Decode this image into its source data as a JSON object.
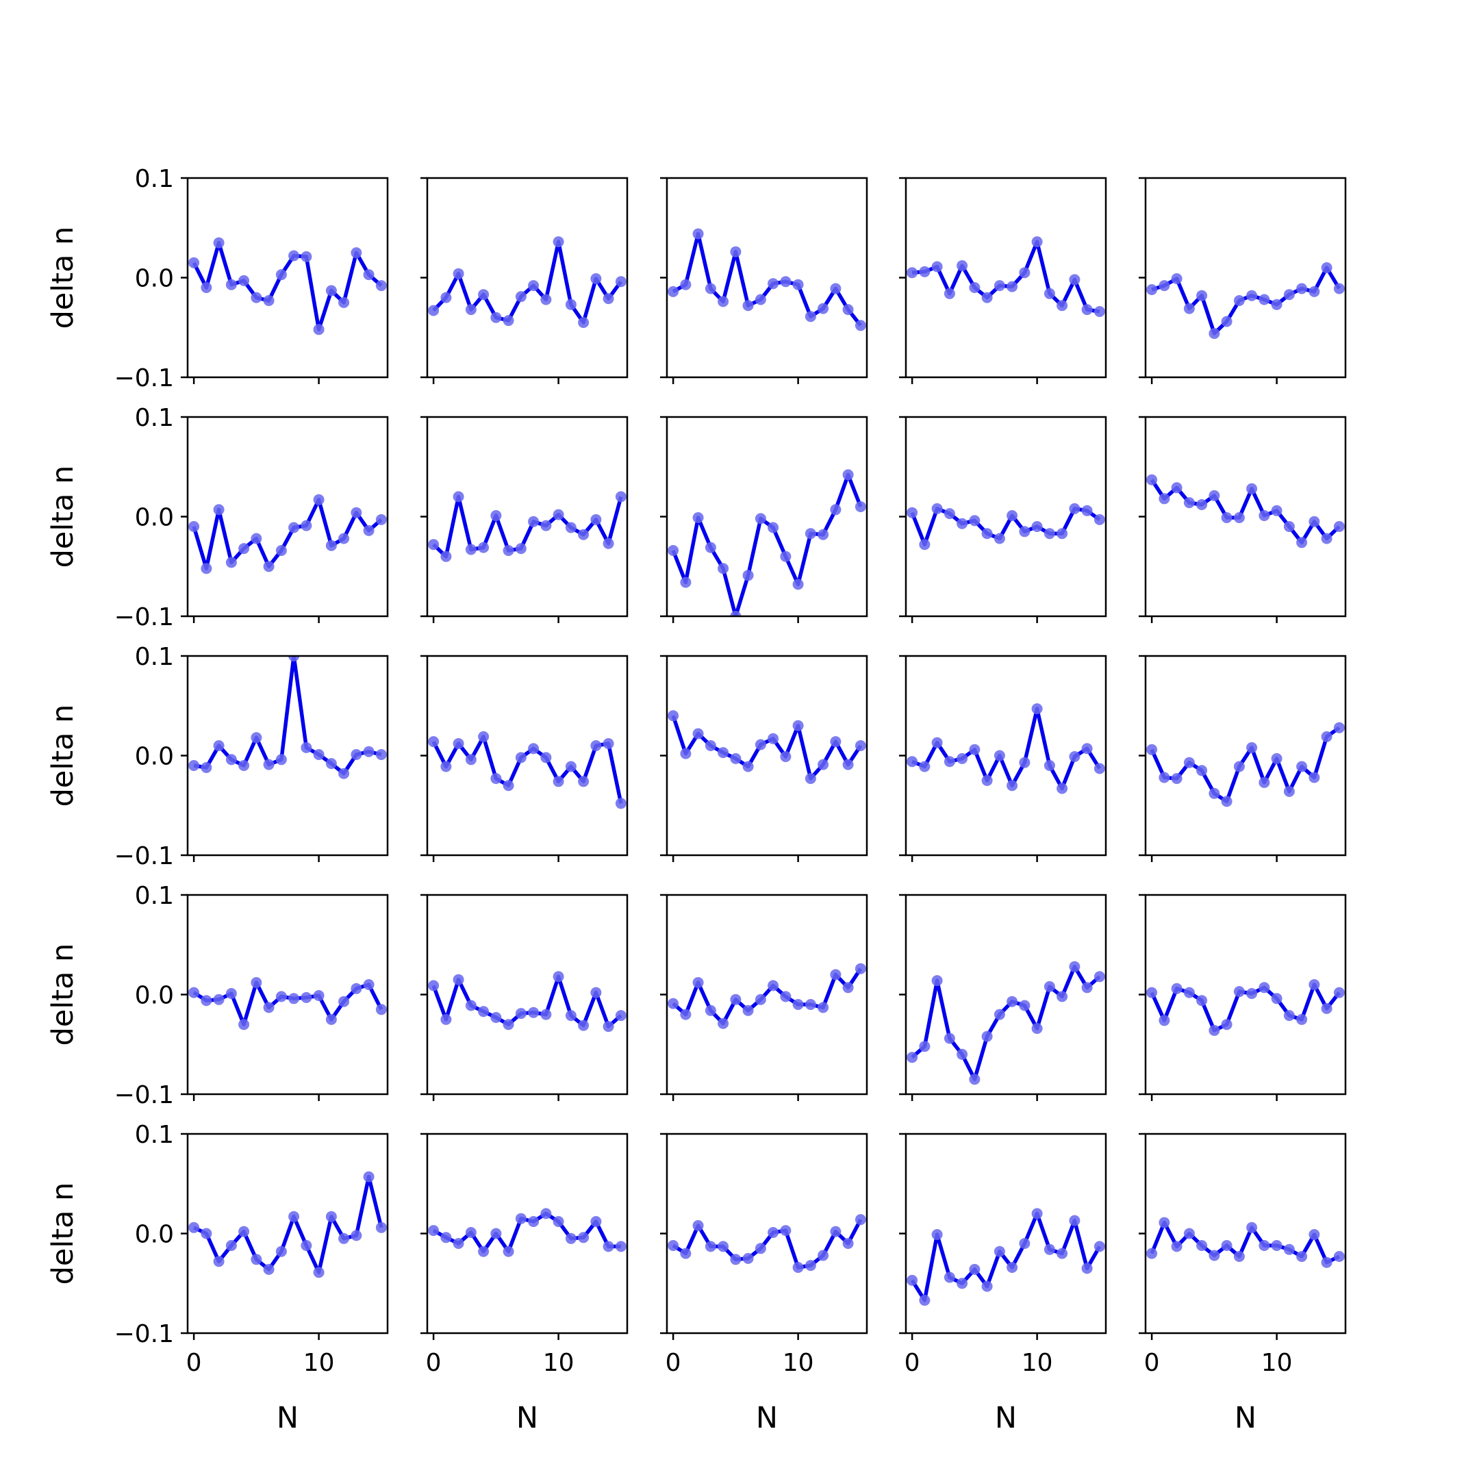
{
  "chart_data": {
    "type": "line",
    "layout": "5x5 grid of subplots",
    "xlabel": "N",
    "ylabel": "delta n",
    "ylim": [
      -0.1,
      0.1
    ],
    "xlim": [
      -0.5,
      15.5
    ],
    "xticks": [
      0,
      10
    ],
    "yticks": [
      -0.1,
      0.0,
      0.1
    ],
    "xtick_labels": [
      "0",
      "10"
    ],
    "ytick_labels": [
      "−0.1",
      "0.0",
      "0.1"
    ],
    "grid": false,
    "line_color": "#0000ee",
    "marker_color": "#6666ee",
    "x": [
      0,
      1,
      2,
      3,
      4,
      5,
      6,
      7,
      8,
      9,
      10,
      11,
      12,
      13,
      14,
      15
    ],
    "panels": [
      [
        0.015,
        -0.01,
        0.035,
        -0.007,
        -0.003,
        -0.02,
        -0.023,
        0.003,
        0.022,
        0.021,
        -0.052,
        -0.013,
        -0.025,
        0.025,
        0.003,
        -0.008
      ],
      [
        -0.033,
        -0.02,
        0.004,
        -0.032,
        -0.017,
        -0.04,
        -0.043,
        -0.019,
        -0.008,
        -0.022,
        0.036,
        -0.027,
        -0.045,
        -0.001,
        -0.021,
        -0.004
      ],
      [
        -0.014,
        -0.007,
        0.044,
        -0.011,
        -0.024,
        0.026,
        -0.028,
        -0.022,
        -0.006,
        -0.004,
        -0.007,
        -0.039,
        -0.031,
        -0.011,
        -0.032,
        -0.048
      ],
      [
        0.005,
        0.006,
        0.011,
        -0.016,
        0.012,
        -0.01,
        -0.02,
        -0.008,
        -0.009,
        0.005,
        0.036,
        -0.016,
        -0.028,
        -0.002,
        -0.032,
        -0.034
      ],
      [
        -0.012,
        -0.008,
        -0.001,
        -0.031,
        -0.018,
        -0.056,
        -0.044,
        -0.023,
        -0.018,
        -0.022,
        -0.027,
        -0.017,
        -0.011,
        -0.014,
        0.01,
        -0.011
      ],
      [
        -0.01,
        -0.052,
        0.007,
        -0.046,
        -0.032,
        -0.022,
        -0.05,
        -0.034,
        -0.011,
        -0.009,
        0.017,
        -0.029,
        -0.022,
        0.004,
        -0.014,
        -0.003
      ],
      [
        -0.028,
        -0.04,
        0.02,
        -0.033,
        -0.031,
        0.001,
        -0.034,
        -0.032,
        -0.005,
        -0.009,
        0.002,
        -0.011,
        -0.018,
        -0.003,
        -0.027,
        0.02
      ],
      [
        -0.034,
        -0.066,
        -0.001,
        -0.031,
        -0.052,
        -0.1,
        -0.059,
        -0.002,
        -0.011,
        -0.04,
        -0.068,
        -0.017,
        -0.018,
        0.007,
        0.042,
        0.01
      ],
      [
        0.004,
        -0.028,
        0.008,
        0.003,
        -0.007,
        -0.004,
        -0.017,
        -0.022,
        0.001,
        -0.015,
        -0.01,
        -0.017,
        -0.017,
        0.008,
        0.006,
        -0.003
      ],
      [
        0.037,
        0.018,
        0.029,
        0.014,
        0.012,
        0.021,
        -0.001,
        -0.001,
        0.028,
        0.001,
        0.006,
        -0.01,
        -0.026,
        -0.005,
        -0.022,
        -0.01
      ],
      [
        -0.01,
        -0.012,
        0.01,
        -0.004,
        -0.01,
        0.018,
        -0.009,
        -0.004,
        0.1,
        0.008,
        0.001,
        -0.008,
        -0.018,
        0.001,
        0.004,
        0.001
      ],
      [
        0.014,
        -0.011,
        0.012,
        -0.004,
        0.019,
        -0.023,
        -0.03,
        -0.002,
        0.007,
        -0.002,
        -0.026,
        -0.011,
        -0.026,
        0.01,
        0.012,
        -0.048
      ],
      [
        0.04,
        0.002,
        0.022,
        0.01,
        0.003,
        -0.003,
        -0.011,
        0.011,
        0.017,
        -0.001,
        0.03,
        -0.023,
        -0.009,
        0.014,
        -0.009,
        0.01
      ],
      [
        -0.006,
        -0.011,
        0.013,
        -0.006,
        -0.003,
        0.006,
        -0.025,
        0.0,
        -0.03,
        -0.007,
        0.047,
        -0.01,
        -0.033,
        -0.001,
        0.007,
        -0.013
      ],
      [
        0.006,
        -0.022,
        -0.023,
        -0.007,
        -0.015,
        -0.038,
        -0.046,
        -0.011,
        0.008,
        -0.027,
        -0.003,
        -0.036,
        -0.011,
        -0.022,
        0.019,
        0.028
      ],
      [
        0.002,
        -0.006,
        -0.005,
        0.001,
        -0.03,
        0.012,
        -0.013,
        -0.002,
        -0.004,
        -0.003,
        -0.001,
        -0.025,
        -0.007,
        0.006,
        0.01,
        -0.015
      ],
      [
        0.009,
        -0.025,
        0.015,
        -0.011,
        -0.017,
        -0.023,
        -0.03,
        -0.019,
        -0.018,
        -0.02,
        0.018,
        -0.021,
        -0.031,
        0.002,
        -0.032,
        -0.021
      ],
      [
        -0.009,
        -0.02,
        0.012,
        -0.016,
        -0.029,
        -0.005,
        -0.016,
        -0.005,
        0.009,
        -0.002,
        -0.01,
        -0.01,
        -0.013,
        0.02,
        0.007,
        0.026
      ],
      [
        -0.063,
        -0.052,
        0.014,
        -0.044,
        -0.06,
        -0.085,
        -0.042,
        -0.02,
        -0.007,
        -0.011,
        -0.034,
        0.008,
        -0.002,
        0.028,
        0.007,
        0.018
      ],
      [
        0.002,
        -0.026,
        0.006,
        0.002,
        -0.006,
        -0.036,
        -0.03,
        0.003,
        0.001,
        0.007,
        -0.004,
        -0.021,
        -0.025,
        0.01,
        -0.014,
        0.002
      ],
      [
        0.006,
        0.0,
        -0.028,
        -0.012,
        0.002,
        -0.026,
        -0.036,
        -0.018,
        0.017,
        -0.012,
        -0.039,
        0.017,
        -0.005,
        -0.002,
        0.057,
        0.006
      ],
      [
        0.003,
        -0.004,
        -0.01,
        0.001,
        -0.018,
        0.0,
        -0.018,
        0.015,
        0.012,
        0.02,
        0.012,
        -0.005,
        -0.004,
        0.012,
        -0.013,
        -0.013
      ],
      [
        -0.012,
        -0.02,
        0.008,
        -0.013,
        -0.013,
        -0.026,
        -0.025,
        -0.015,
        0.001,
        0.003,
        -0.034,
        -0.032,
        -0.022,
        0.002,
        -0.01,
        0.014
      ],
      [
        -0.047,
        -0.067,
        -0.001,
        -0.044,
        -0.05,
        -0.036,
        -0.053,
        -0.018,
        -0.034,
        -0.01,
        0.02,
        -0.016,
        -0.02,
        0.013,
        -0.035,
        -0.013
      ],
      [
        -0.02,
        0.011,
        -0.013,
        0.0,
        -0.012,
        -0.022,
        -0.012,
        -0.023,
        0.006,
        -0.012,
        -0.012,
        -0.016,
        -0.023,
        -0.001,
        -0.029,
        -0.023
      ]
    ]
  }
}
